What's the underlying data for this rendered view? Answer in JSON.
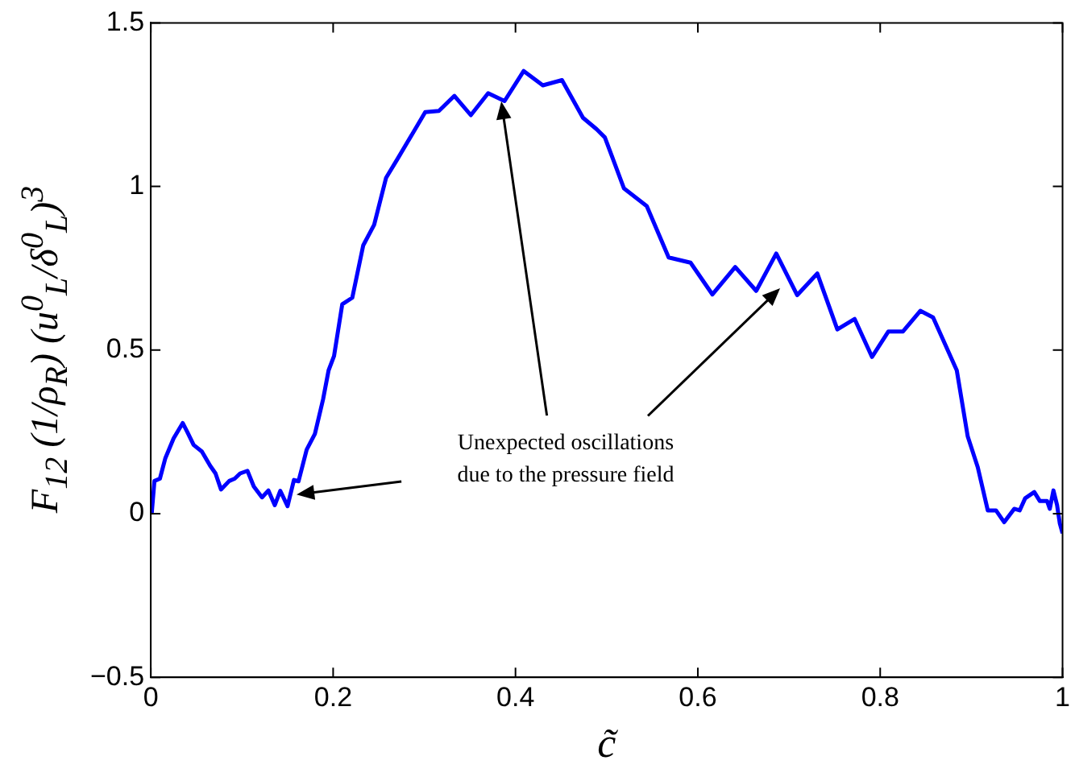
{
  "chart_data": {
    "type": "line",
    "xlabel": "c̃",
    "ylabel": "F$_{12}$ (1/ρ$_{R}$) (u$^{0}$$_{L}$/δ$^{0}$$_{L}$)$^{3}$",
    "xlim": [
      0,
      1
    ],
    "ylim": [
      -0.5,
      1.5
    ],
    "xticks": [
      0,
      0.2,
      0.4,
      0.6,
      0.8,
      1
    ],
    "yticks": [
      -0.5,
      0,
      0.5,
      1,
      1.5
    ],
    "grid": false,
    "legend": false,
    "marker": "none",
    "line_style": "solid",
    "annotations": [
      {
        "text": "Unexpected oscillations\ndue to the pressure field",
        "x": 0.385,
        "y": 1.26
      }
    ],
    "series": [
      {
        "color": "#0000ff",
        "x": [
          0.001,
          0.004,
          0.01,
          0.016,
          0.025,
          0.035,
          0.04,
          0.047,
          0.056,
          0.065,
          0.071,
          0.077,
          0.086,
          0.092,
          0.098,
          0.106,
          0.113,
          0.122,
          0.129,
          0.136,
          0.142,
          0.15,
          0.157,
          0.162,
          0.171,
          0.18,
          0.189,
          0.195,
          0.201,
          0.21,
          0.221,
          0.233,
          0.245,
          0.258,
          0.271,
          0.301,
          0.316,
          0.333,
          0.351,
          0.37,
          0.388,
          0.409,
          0.43,
          0.451,
          0.474,
          0.489,
          0.498,
          0.519,
          0.544,
          0.568,
          0.592,
          0.616,
          0.641,
          0.664,
          0.686,
          0.709,
          0.731,
          0.753,
          0.772,
          0.791,
          0.809,
          0.825,
          0.844,
          0.858,
          0.884,
          0.896,
          0.907,
          0.918,
          0.927,
          0.936,
          0.947,
          0.953,
          0.959,
          0.969,
          0.975,
          0.983,
          0.986,
          0.99,
          0.994,
          0.997,
          1.0
        ],
        "values": [
          0.0,
          0.1,
          0.107,
          0.17,
          0.23,
          0.277,
          0.25,
          0.21,
          0.19,
          0.147,
          0.123,
          0.074,
          0.1,
          0.107,
          0.123,
          0.131,
          0.083,
          0.05,
          0.071,
          0.026,
          0.07,
          0.023,
          0.103,
          0.099,
          0.196,
          0.244,
          0.35,
          0.438,
          0.482,
          0.64,
          0.66,
          0.82,
          0.883,
          1.026,
          1.086,
          1.227,
          1.231,
          1.277,
          1.218,
          1.285,
          1.261,
          1.353,
          1.309,
          1.325,
          1.21,
          1.175,
          1.15,
          0.994,
          0.94,
          0.783,
          0.767,
          0.67,
          0.754,
          0.681,
          0.795,
          0.668,
          0.734,
          0.563,
          0.595,
          0.479,
          0.557,
          0.557,
          0.62,
          0.6,
          0.438,
          0.236,
          0.142,
          0.01,
          0.01,
          -0.026,
          0.015,
          0.01,
          0.047,
          0.066,
          0.039,
          0.039,
          0.015,
          0.071,
          0.026,
          -0.03,
          -0.06
        ]
      }
    ]
  }
}
